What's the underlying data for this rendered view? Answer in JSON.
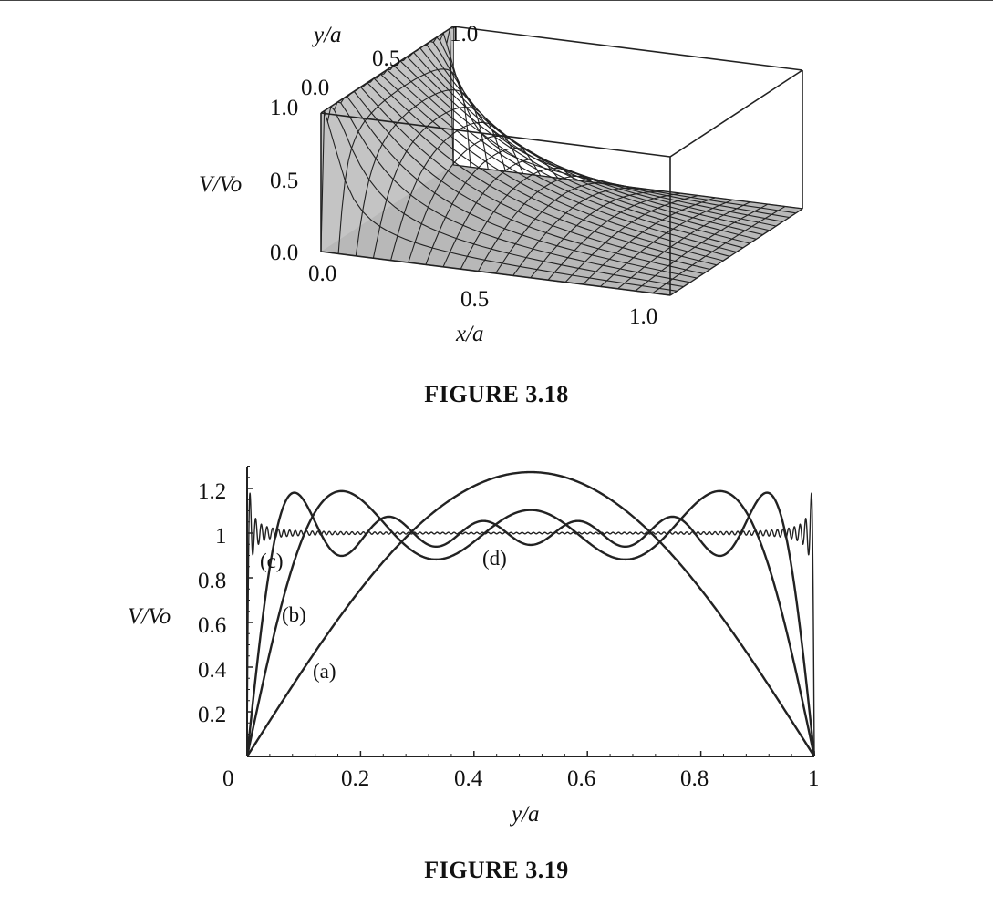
{
  "captions": {
    "fig18": "FIGURE 3.18",
    "fig19": "FIGURE 3.19"
  },
  "chart_data": [
    {
      "type": "surface",
      "title": "",
      "xlabel": "x/a",
      "ylabel": "y/a",
      "zlabel": "V/Vo",
      "xlim": [
        0,
        1
      ],
      "ylim": [
        0,
        1
      ],
      "zlim": [
        0,
        1
      ],
      "x_ticks": [
        "0.0",
        "0.5",
        "1.0"
      ],
      "y_ticks": [
        "0.0",
        "0.5",
        "1.0"
      ],
      "z_ticks": [
        "0.0",
        "0.5",
        "1.0"
      ],
      "surface_color": "#b8b8b8",
      "mesh_color": "#222222"
    },
    {
      "type": "line",
      "title": "",
      "xlabel": "y/a",
      "ylabel": "V/Vo",
      "xlim": [
        0,
        1
      ],
      "ylim": [
        0,
        1.3
      ],
      "x_ticks": [
        "0",
        "0.2",
        "0.4",
        "0.6",
        "0.8",
        "1"
      ],
      "y_ticks": [
        "0.2",
        "0.4",
        "0.6",
        "0.8",
        "1",
        "1.2"
      ],
      "series": [
        {
          "label": "(a)",
          "terms": 1
        },
        {
          "label": "(b)",
          "terms": 3
        },
        {
          "label": "(c)",
          "terms": 6
        },
        {
          "label": "(d)",
          "terms": 100
        }
      ],
      "line_color": "#222222"
    }
  ]
}
